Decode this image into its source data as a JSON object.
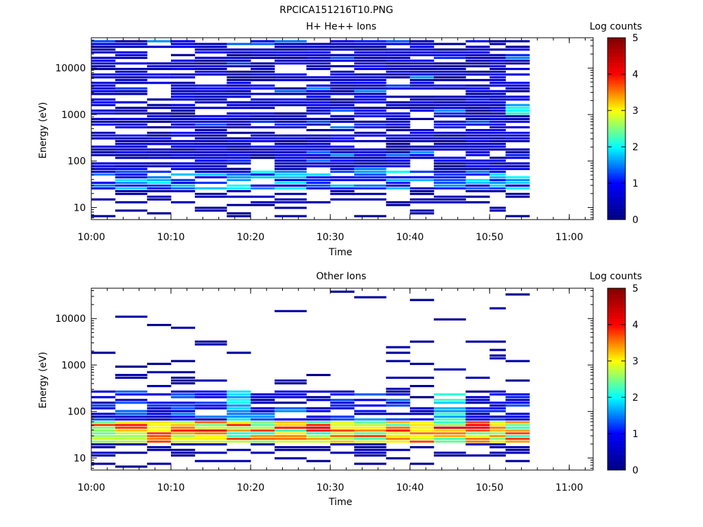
{
  "page": {
    "title": "RPCICA151216T10.PNG"
  },
  "colormap": {
    "stops": [
      "#00007f",
      "#0000ff",
      "#00ffff",
      "#ffff00",
      "#ff0000",
      "#7f0000"
    ]
  },
  "chart_data": [
    {
      "type": "heatmap",
      "title": "H+ He++ Ions",
      "xlabel": "Time",
      "ylabel": "Energy (eV)",
      "xlim": [
        "10:00",
        "11:03"
      ],
      "xticks": [
        "10:00",
        "10:10",
        "10:20",
        "10:30",
        "10:40",
        "10:50",
        "11:00"
      ],
      "yscale": "log",
      "ylim": [
        5.5,
        45000
      ],
      "yticks": [
        "10",
        "100",
        "1000",
        "10000"
      ],
      "colorbar": {
        "label": "Log counts",
        "range": [
          0,
          5
        ],
        "ticks": [
          "0",
          "1",
          "2",
          "3",
          "4",
          "5"
        ]
      },
      "time_bins_start": [
        "10:00",
        "10:03",
        "10:07",
        "10:10",
        "10:13",
        "10:17",
        "10:20",
        "10:23",
        "10:27",
        "10:30",
        "10:33",
        "10:37",
        "10:40",
        "10:43",
        "10:47",
        "10:50",
        "10:52"
      ],
      "time_bins_end": "10:55",
      "energy_range": [
        6,
        40000
      ]
    },
    {
      "type": "heatmap",
      "title": "Other Ions",
      "xlabel": "Time",
      "ylabel": "Energy (eV)",
      "xlim": [
        "10:00",
        "11:03"
      ],
      "xticks": [
        "10:00",
        "10:10",
        "10:20",
        "10:30",
        "10:40",
        "10:50",
        "11:00"
      ],
      "yscale": "log",
      "ylim": [
        5.5,
        45000
      ],
      "yticks": [
        "10",
        "100",
        "1000",
        "10000"
      ],
      "colorbar": {
        "label": "Log counts",
        "range": [
          0,
          5
        ],
        "ticks": [
          "0",
          "1",
          "2",
          "3",
          "4",
          "5"
        ]
      },
      "time_bins_start": [
        "10:00",
        "10:03",
        "10:07",
        "10:10",
        "10:13",
        "10:17",
        "10:20",
        "10:23",
        "10:27",
        "10:30",
        "10:33",
        "10:37",
        "10:40",
        "10:43",
        "10:47",
        "10:50",
        "10:52"
      ],
      "time_bins_end": "10:55",
      "energy_range": [
        6,
        40000
      ]
    }
  ]
}
